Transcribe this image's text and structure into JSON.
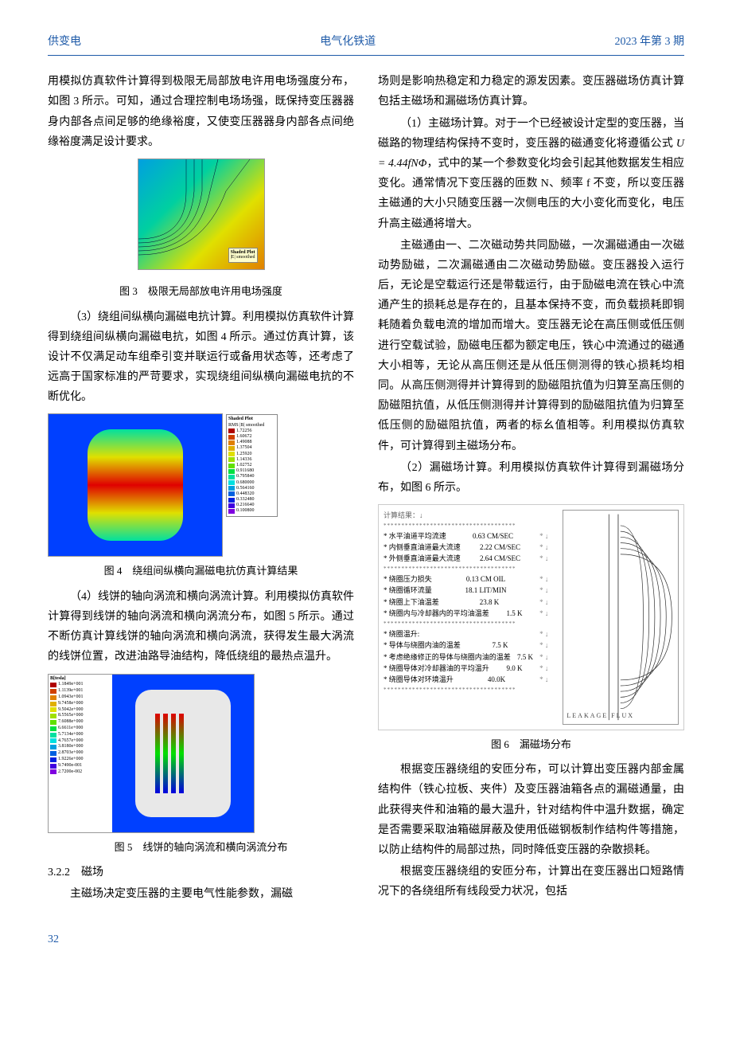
{
  "header": {
    "left": "供变电",
    "center": "电气化铁道",
    "right": "2023 年第 3 期"
  },
  "col1": {
    "p1": "用模拟仿真软件计算得到极限无局部放电许用电场强度分布，如图 3 所示。可知，通过合理控制电场场强，既保持变压器器身内部各点间足够的绝缘裕度，又使变压器器身内部各点间绝缘裕度满足设计要求。",
    "fig3_caption": "图 3　极限无局部放电许用电场强度",
    "fig3_label_title": "Shaded Plot",
    "fig3_label_sub": "|E| smoothed",
    "p2": "（3）绕组间纵横向漏磁电抗计算。利用模拟仿真软件计算得到绕组间纵横向漏磁电抗，如图 4 所示。通过仿真计算，该设计不仅满足动车组牵引变并联运行或备用状态等，还考虑了远高于国家标准的严苛要求，实现绕组间纵横向漏磁电抗的不断优化。",
    "fig4_caption": "图 4　绕组间纵横向漏磁电抗仿真计算结果",
    "fig4_legend_title": "Shaded Plot",
    "fig4_legend_sub": "RMS |B| smoothed",
    "p3": "（4）线饼的轴向涡流和横向涡流计算。利用模拟仿真软件计算得到线饼的轴向涡流和横向涡流分布，如图 5 所示。通过不断仿真计算线饼的轴向涡流和横向涡流，获得发生最大涡流的线饼位置，改进油路导油结构，降低绕组的最热点温升。",
    "fig5_caption": "图 5　线饼的轴向涡流和横向涡流分布",
    "fig5_legend_title": "B[tesla]",
    "sec_heading": "3.2.2　磁场",
    "p4": "主磁场决定变压器的主要电气性能参数，漏磁"
  },
  "col2": {
    "p1": "场则是影响热稳定和力稳定的源发因素。变压器磁场仿真计算包括主磁场和漏磁场仿真计算。",
    "p2_a": "（1）主磁场计算。对于一个已经被设计定型的变压器，当磁路的物理结构保持不变时，变压器的磁通变化将遵循公式 ",
    "p2_formula": "U = 4.44fNΦ",
    "p2_b": "，式中的某一个参数变化均会引起其他数据发生相应变化。通常情况下变压器的匝数 N、频率 f 不变，所以变压器主磁通的大小只随变压器一次侧电压的大小变化而变化，电压升高主磁通将增大。",
    "p3": "主磁通由一、二次磁动势共同励磁，一次漏磁通由一次磁动势励磁，二次漏磁通由二次磁动势励磁。变压器投入运行后，无论是空载运行还是带载运行，由于励磁电流在铁心中流通产生的损耗总是存在的，且基本保持不变，而负载损耗即铜耗随着负载电流的增加而增大。变压器无论在高压侧或低压侧进行空载试验，励磁电压都为额定电压，铁心中流通过的磁通大小相等，无论从高压侧还是从低压侧测得的铁心损耗均相同。从高压侧测得并计算得到的励磁阻抗值为归算至高压侧的励磁阻抗值，从低压侧测得并计算得到的励磁阻抗值为归算至低压侧的励磁阻抗值，两者的标幺值相等。利用模拟仿真软件，可计算得到主磁场分布。",
    "p4": "（2）漏磁场计算。利用模拟仿真软件计算得到漏磁场分布，如图 6 所示。",
    "fig6_caption": "图 6　漏磁场分布",
    "p5": "根据变压器绕组的安匝分布，可以计算出变压器内部金属结构件（铁心拉板、夹件）及变压器油箱各点的漏磁通量，由此获得夹件和油箱的最大温升，针对结构件中温升数据，确定是否需要采取油箱磁屏蔽及使用低磁钢板制作结构件等措施，以防止结构件的局部过热，同时降低变压器的杂散损耗。",
    "p6": "根据变压器绕组的安匝分布，计算出在变压器出口短路情况下的各绕组所有线段受力状况，包括"
  },
  "fig4_legend_values": [
    {
      "color": "#b00000",
      "val": "1.72256"
    },
    {
      "color": "#d04000",
      "val": "1.60672"
    },
    {
      "color": "#e08000",
      "val": "1.49088"
    },
    {
      "color": "#e0b000",
      "val": "1.37504"
    },
    {
      "color": "#e0e000",
      "val": "1.25920"
    },
    {
      "color": "#a0e000",
      "val": "1.14336"
    },
    {
      "color": "#60e000",
      "val": "1.02752"
    },
    {
      "color": "#00e040",
      "val": "0.911680"
    },
    {
      "color": "#00e0a0",
      "val": "0.795840"
    },
    {
      "color": "#00e0e0",
      "val": "0.680000"
    },
    {
      "color": "#00a0e0",
      "val": "0.564160"
    },
    {
      "color": "#0060e0",
      "val": "0.448320"
    },
    {
      "color": "#0020e0",
      "val": "0.332480"
    },
    {
      "color": "#4000e0",
      "val": "0.216640"
    },
    {
      "color": "#8000e0",
      "val": "0.100800"
    }
  ],
  "fig5_legend_values": [
    "1.1849e+001",
    "1.1139e+001",
    "1.0943e+001",
    "9.7458e+000",
    "9.5042e+000",
    "8.5565e+000",
    "7.6088e+000",
    "6.6611e+000",
    "5.7134e+000",
    "4.7657e+000",
    "3.8180e+000",
    "2.8703e+000",
    "1.9226e+000",
    "9.7490e-001",
    "2.7200e-002"
  ],
  "fig6_data": {
    "title": "计算结果：↓",
    "rows_a": [
      {
        "label": "* 水平油道平均流速",
        "val": "0.63 CM/SEC",
        "mark": "* ↓"
      },
      {
        "label": "* 内侧垂直油道最大流速",
        "val": "2.22 CM/SEC",
        "mark": "* ↓"
      },
      {
        "label": "* 外侧垂直油道最大流速",
        "val": "2.64 CM/SEC",
        "mark": "* ↓"
      }
    ],
    "rows_b": [
      {
        "label": "* 绕圈压力损失",
        "val": "0.13 CM OIL",
        "mark": "* ↓"
      },
      {
        "label": "* 绕圈循环流量",
        "val": "18.1 LIT/MIN",
        "mark": "* ↓"
      },
      {
        "label": "* 绕圈上下油温差",
        "val": "23.8 K",
        "mark": "* ↓"
      },
      {
        "label": "* 绕圈内与冷却器内的平均油温差",
        "val": "1.5 K",
        "mark": "* ↓"
      }
    ],
    "rows_c": [
      {
        "label": "* 绕圈温升:",
        "val": "",
        "mark": "* ↓"
      },
      {
        "label": "* 导体与绕圈内油的温差",
        "val": "7.5 K",
        "mark": "* ↓"
      },
      {
        "label": "* 考虑绝缘修正的导体与绕圈内油的温差",
        "val": "7.5 K",
        "mark": "* ↓"
      },
      {
        "label": "* 绕圈导体对冷却器油的平均温升",
        "val": "9.0 K",
        "mark": "* ↓"
      },
      {
        "label": "* 绕圈导体对环境温升",
        "val": "40.0K",
        "mark": "* ↓"
      }
    ],
    "right_label": "LEAKAGE FLUX"
  },
  "page_number": "32"
}
